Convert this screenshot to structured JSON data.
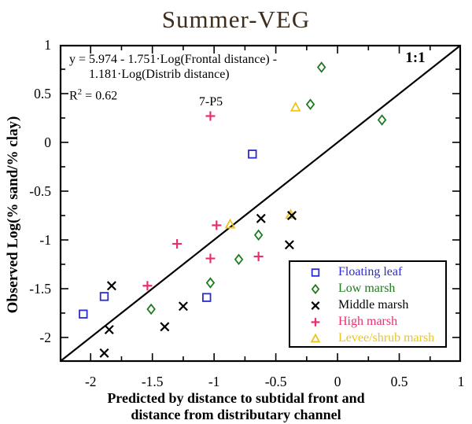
{
  "title": {
    "text": "Summer-VEG",
    "color": "#3d2d1c"
  },
  "chart_data": {
    "type": "scatter",
    "title": "Summer-VEG",
    "xlabel": "Predicted by distance to subtidal front and distance from distributary channel",
    "xlabel_lines": [
      "Predicted by distance to subtidal front and",
      "distance from distributary channel"
    ],
    "ylabel": "Observed Log(% sand/% clay)",
    "xlim": [
      -2.25,
      1
    ],
    "ylim": [
      -2.25,
      1
    ],
    "x_ticks": {
      "values": [
        -2,
        -1.5,
        -1,
        -0.5,
        0,
        0.5,
        1
      ],
      "labels": [
        "-2",
        "-1.5",
        "-1",
        "-0.5",
        "0",
        "0.5",
        "1"
      ]
    },
    "y_ticks": {
      "values": [
        1,
        0.5,
        0,
        -0.5,
        -1,
        -1.5,
        -2
      ],
      "labels": [
        "1",
        "0.5",
        "0",
        "-0.5",
        "-1",
        "-1.5",
        "-2"
      ]
    },
    "minor_tick_step": 0.25,
    "grid": false,
    "legend_position": "bottom-right",
    "reference_line": {
      "from": [
        -2.25,
        -2.25
      ],
      "to": [
        1,
        1
      ],
      "label": "1:1"
    },
    "annotations": {
      "equation_lines": [
        "y = 5.974 - 1.751·Log(Frontal distance) -",
        "1.181·Log(Distrib distance)"
      ],
      "r_squared": {
        "base": "R",
        "exponent": "2",
        "rest": " = 0.62"
      },
      "point_label": {
        "text": "7-P5",
        "point": [
          -1.03,
          0.27
        ],
        "series": "High marsh"
      },
      "line_label": "1:1"
    },
    "series": [
      {
        "name": "Floating leaf",
        "marker": "square",
        "color": "#2b2bd0",
        "points": [
          [
            -0.69,
            -0.12
          ],
          [
            -1.06,
            -1.59
          ],
          [
            -1.89,
            -1.58
          ],
          [
            -2.06,
            -1.76
          ]
        ]
      },
      {
        "name": "Low marsh",
        "marker": "diamond",
        "color": "#1f7a1f",
        "points": [
          [
            -0.13,
            0.77
          ],
          [
            -0.22,
            0.39
          ],
          [
            0.36,
            0.23
          ],
          [
            -0.64,
            -0.95
          ],
          [
            -0.8,
            -1.2
          ],
          [
            -1.03,
            -1.44
          ],
          [
            -1.51,
            -1.71
          ]
        ]
      },
      {
        "name": "Middle marsh",
        "marker": "x",
        "color": "#000000",
        "points": [
          [
            -0.62,
            -0.78
          ],
          [
            -0.37,
            -0.75
          ],
          [
            -0.39,
            -1.05
          ],
          [
            -1.25,
            -1.68
          ],
          [
            -1.4,
            -1.89
          ],
          [
            -1.83,
            -1.47
          ],
          [
            -1.85,
            -1.92
          ],
          [
            -1.89,
            -2.16
          ]
        ]
      },
      {
        "name": "High marsh",
        "marker": "plus",
        "color": "#e8306d",
        "points": [
          [
            -1.03,
            0.27
          ],
          [
            -0.98,
            -0.85
          ],
          [
            -1.3,
            -1.04
          ],
          [
            -1.03,
            -1.19
          ],
          [
            -0.64,
            -1.17
          ],
          [
            -1.54,
            -1.47
          ]
        ]
      },
      {
        "name": "Levee/shrub marsh",
        "marker": "triangle",
        "color": "#ecc41e",
        "points": [
          [
            -0.34,
            0.36
          ],
          [
            -0.87,
            -0.84
          ],
          [
            -0.38,
            -0.74
          ]
        ]
      }
    ]
  }
}
